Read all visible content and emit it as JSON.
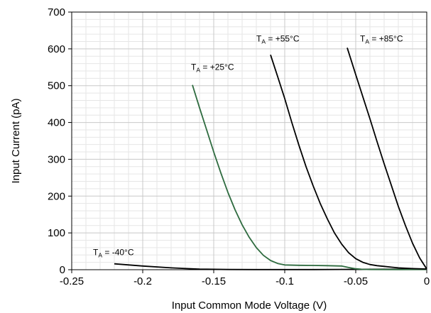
{
  "chart_data": {
    "type": "line",
    "xlabel": "Input Common Mode Voltage (V)",
    "ylabel": "Input Current (pA)",
    "xlim": [
      -0.25,
      0
    ],
    "ylim": [
      0,
      700
    ],
    "x_ticks": [
      "-0.25",
      "-0.2",
      "-0.15",
      "-0.1",
      "-0.05",
      "0"
    ],
    "y_ticks": [
      "0",
      "100",
      "200",
      "300",
      "400",
      "500",
      "600",
      "700"
    ],
    "x_tick_values": [
      -0.25,
      -0.2,
      -0.15,
      -0.1,
      -0.05,
      0
    ],
    "y_tick_values": [
      0,
      100,
      200,
      300,
      400,
      500,
      600,
      700
    ],
    "grid": true,
    "minor_grid": true,
    "legend": "none",
    "series": [
      {
        "label_main": "T",
        "label_sub": "A",
        "label_rest": " = -40°C",
        "label_pos": [
          -0.235,
          40
        ],
        "color": "#000000",
        "points": [
          [
            -0.22,
            16
          ],
          [
            -0.2,
            10
          ],
          [
            -0.18,
            5
          ],
          [
            -0.16,
            1.5
          ],
          [
            -0.14,
            0.5
          ],
          [
            -0.12,
            0.3
          ],
          [
            -0.1,
            0.3
          ],
          [
            -0.08,
            0.4
          ],
          [
            -0.06,
            0.8
          ],
          [
            -0.04,
            1.2
          ],
          [
            -0.02,
            1.3
          ],
          [
            0,
            1.5
          ]
        ]
      },
      {
        "label_main": "T",
        "label_sub": "A",
        "label_rest": " = +25°C",
        "label_pos": [
          -0.166,
          543
        ],
        "color": "#2e6b3f",
        "points": [
          [
            -0.165,
            502
          ],
          [
            -0.16,
            440
          ],
          [
            -0.155,
            380
          ],
          [
            -0.15,
            320
          ],
          [
            -0.145,
            263
          ],
          [
            -0.14,
            210
          ],
          [
            -0.135,
            163
          ],
          [
            -0.13,
            122
          ],
          [
            -0.125,
            88
          ],
          [
            -0.12,
            60
          ],
          [
            -0.115,
            39
          ],
          [
            -0.11,
            25
          ],
          [
            -0.105,
            17
          ],
          [
            -0.1,
            13
          ],
          [
            -0.09,
            12
          ],
          [
            -0.08,
            11.5
          ],
          [
            -0.07,
            11
          ],
          [
            -0.06,
            10
          ],
          [
            -0.055,
            6
          ],
          [
            -0.05,
            2.5
          ],
          [
            -0.045,
            1
          ],
          [
            -0.04,
            0.5
          ],
          [
            -0.02,
            0.3
          ],
          [
            0,
            0.5
          ]
        ]
      },
      {
        "label_main": "T",
        "label_sub": "A",
        "label_rest": " = +55°C",
        "label_pos": [
          -0.12,
          620
        ],
        "color": "#000000",
        "points": [
          [
            -0.11,
            584
          ],
          [
            -0.105,
            525
          ],
          [
            -0.1,
            465
          ],
          [
            -0.095,
            400
          ],
          [
            -0.09,
            338
          ],
          [
            -0.085,
            280
          ],
          [
            -0.08,
            228
          ],
          [
            -0.075,
            180
          ],
          [
            -0.07,
            138
          ],
          [
            -0.065,
            100
          ],
          [
            -0.06,
            70
          ],
          [
            -0.055,
            46
          ],
          [
            -0.05,
            30
          ],
          [
            -0.045,
            20
          ],
          [
            -0.04,
            14
          ],
          [
            -0.035,
            11
          ],
          [
            -0.03,
            9
          ],
          [
            -0.025,
            7
          ],
          [
            -0.02,
            5
          ],
          [
            -0.01,
            3
          ],
          [
            0,
            2
          ]
        ]
      },
      {
        "label_main": "T",
        "label_sub": "A",
        "label_rest": " = +85°C",
        "label_pos": [
          -0.047,
          620
        ],
        "color": "#000000",
        "points": [
          [
            -0.056,
            603
          ],
          [
            -0.05,
            530
          ],
          [
            -0.045,
            470
          ],
          [
            -0.04,
            410
          ],
          [
            -0.035,
            348
          ],
          [
            -0.03,
            288
          ],
          [
            -0.025,
            230
          ],
          [
            -0.02,
            172
          ],
          [
            -0.015,
            120
          ],
          [
            -0.01,
            72
          ],
          [
            -0.005,
            32
          ],
          [
            0,
            2
          ]
        ]
      }
    ]
  }
}
